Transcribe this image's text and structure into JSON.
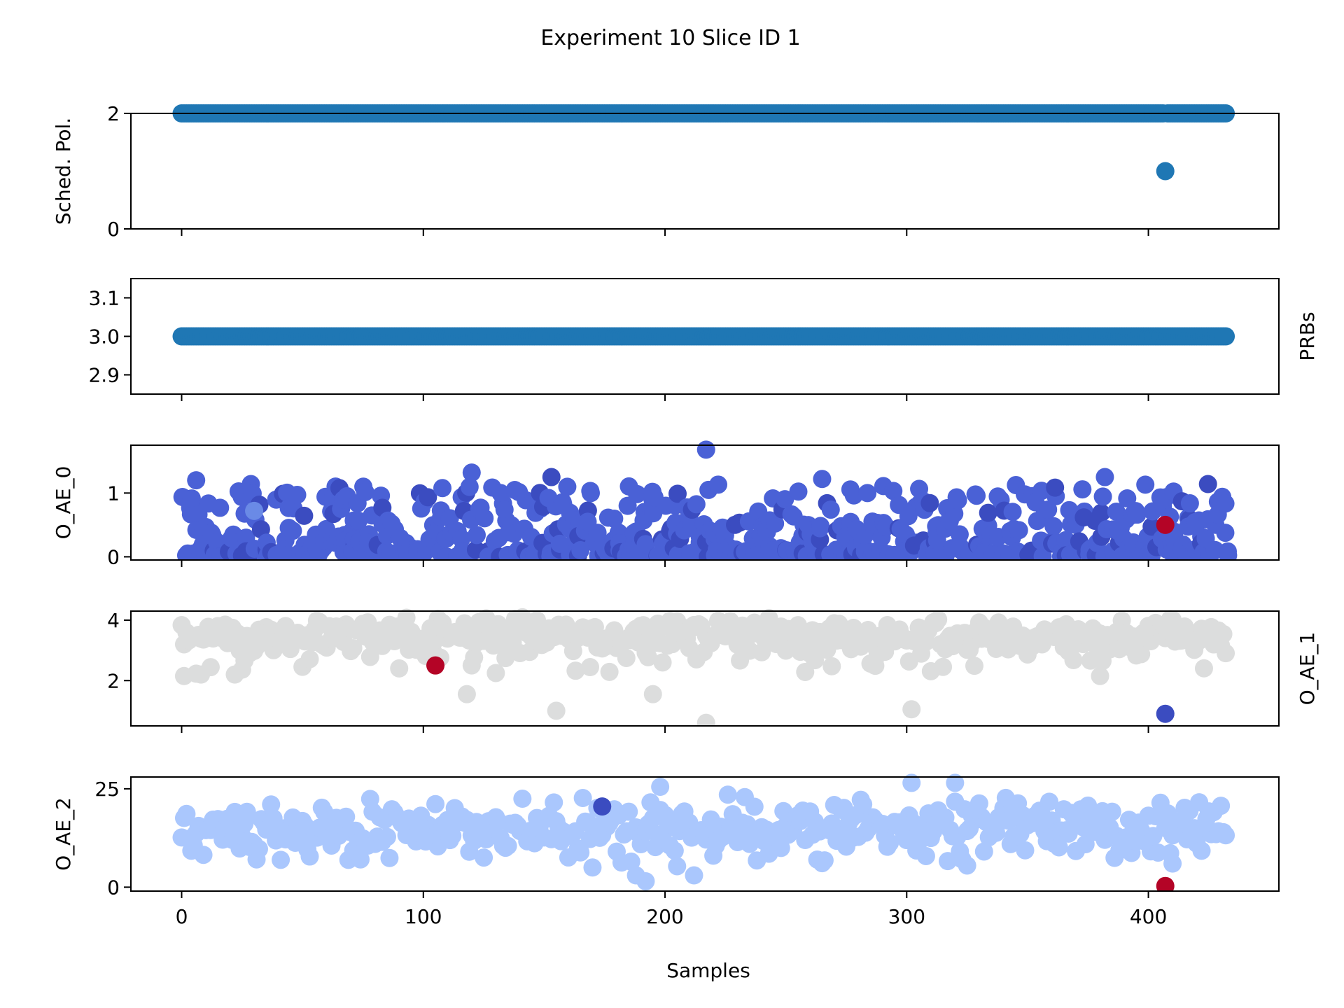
{
  "chart_data": {
    "title": "Experiment 10 Slice ID 1",
    "xlabel": "Samples",
    "x_range": [
      -21,
      454
    ],
    "x_ticks": [
      0,
      100,
      200,
      300,
      400
    ],
    "n_samples": 433,
    "colors": {
      "default": "#1f77b4",
      "cool_dark": "#3b4cc0",
      "cool_mid": "#4a61d6",
      "cool_light": "#aac7fd",
      "neutral": "#dcdddd",
      "hot": "#b40426"
    },
    "subplots": [
      {
        "type": "scatter",
        "ylabel": "Sched. Pol.",
        "ylabel_side": "left",
        "ylim": [
          0,
          2
        ],
        "yticks": [
          0,
          2
        ],
        "baseline": 2,
        "points": [
          {
            "x": 407,
            "y": 1,
            "color": "#1f77b4"
          }
        ]
      },
      {
        "type": "scatter",
        "ylabel": "PRBs",
        "ylabel_side": "right",
        "ylim": [
          2.85,
          3.15
        ],
        "yticks": [
          "2.9",
          "3.0",
          "3.1"
        ],
        "baseline": 3.0,
        "points": []
      },
      {
        "type": "scatter",
        "ylabel": "O_AE_0",
        "ylabel_side": "left",
        "ylim": [
          -0.05,
          1.75
        ],
        "yticks": [
          0,
          1
        ],
        "bulk_color": "#4a61d6",
        "points": [
          {
            "x": 217,
            "y": 1.68,
            "color": "#4a61d6"
          },
          {
            "x": 120,
            "y": 1.32,
            "color": "#4a61d6"
          },
          {
            "x": 153,
            "y": 1.25,
            "color": "#3b4cc0"
          },
          {
            "x": 382,
            "y": 1.25,
            "color": "#4a61d6"
          },
          {
            "x": 6,
            "y": 1.2,
            "color": "#4a61d6"
          },
          {
            "x": 265,
            "y": 1.22,
            "color": "#4a61d6"
          },
          {
            "x": 30,
            "y": 0.72,
            "color": "#6a8ae6"
          },
          {
            "x": 407,
            "y": 0.5,
            "color": "#b40426"
          }
        ]
      },
      {
        "type": "scatter",
        "ylabel": "O_AE_1",
        "ylabel_side": "right",
        "ylim": [
          0.5,
          4.3
        ],
        "yticks": [
          2,
          4
        ],
        "bulk_color": "#dcdddd",
        "points": [
          {
            "x": 105,
            "y": 2.5,
            "color": "#b40426"
          },
          {
            "x": 407,
            "y": 0.9,
            "color": "#3b4cc0"
          },
          {
            "x": 217,
            "y": 0.6,
            "color": "#dcdddd"
          },
          {
            "x": 155,
            "y": 1.0,
            "color": "#dcdddd"
          },
          {
            "x": 302,
            "y": 1.05,
            "color": "#dcdddd"
          },
          {
            "x": 118,
            "y": 1.55,
            "color": "#dcdddd"
          },
          {
            "x": 195,
            "y": 1.55,
            "color": "#dcdddd"
          },
          {
            "x": 1,
            "y": 2.15,
            "color": "#dcdddd"
          },
          {
            "x": 8,
            "y": 2.2,
            "color": "#dcdddd"
          },
          {
            "x": 22,
            "y": 2.2,
            "color": "#dcdddd"
          },
          {
            "x": 130,
            "y": 2.25,
            "color": "#dcdddd"
          },
          {
            "x": 380,
            "y": 2.15,
            "color": "#dcdddd"
          }
        ]
      },
      {
        "type": "scatter",
        "ylabel": "O_AE_2",
        "ylabel_side": "left",
        "ylim": [
          -1,
          28
        ],
        "yticks": [
          0,
          25
        ],
        "bulk_color": "#aac7fd",
        "points": [
          {
            "x": 174,
            "y": 20.5,
            "color": "#3b4cc0"
          },
          {
            "x": 407,
            "y": 0.3,
            "color": "#b40426"
          },
          {
            "x": 192,
            "y": 1.5,
            "color": "#aac7fd"
          },
          {
            "x": 188,
            "y": 3.0,
            "color": "#aac7fd"
          },
          {
            "x": 212,
            "y": 3.0,
            "color": "#aac7fd"
          },
          {
            "x": 170,
            "y": 5.0,
            "color": "#aac7fd"
          },
          {
            "x": 198,
            "y": 25.5,
            "color": "#aac7fd"
          },
          {
            "x": 302,
            "y": 26.5,
            "color": "#aac7fd"
          },
          {
            "x": 320,
            "y": 26.5,
            "color": "#aac7fd"
          },
          {
            "x": 325,
            "y": 5.5,
            "color": "#aac7fd"
          },
          {
            "x": 410,
            "y": 6.0,
            "color": "#aac7fd"
          }
        ]
      }
    ]
  }
}
